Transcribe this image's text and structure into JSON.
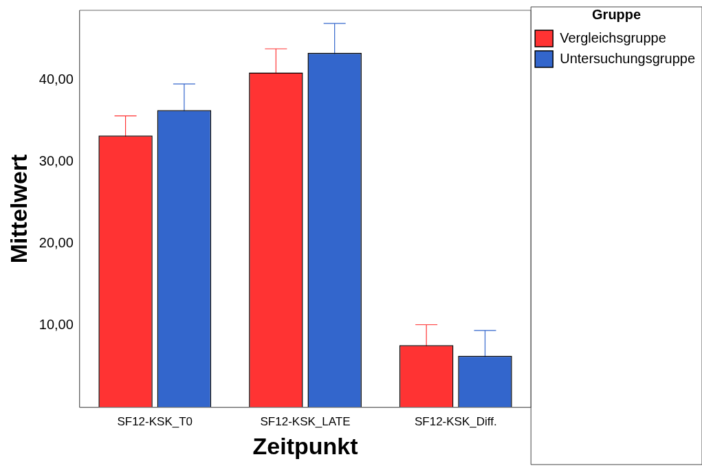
{
  "chart_data": {
    "type": "bar",
    "xlabel": "Zeitpunkt",
    "ylabel": "Mittelwert",
    "legend_title": "Gruppe",
    "legend": "top right",
    "categories": [
      "SF12-KSK_T0",
      "SF12-KSK_LATE",
      "SF12-KSK_Diff."
    ],
    "series": [
      {
        "name": "Vergleichsgruppe",
        "color": "#ff3333",
        "values": [
          33.2,
          40.9,
          7.6
        ],
        "errors": [
          2.4,
          2.9,
          2.5
        ]
      },
      {
        "name": "Untersuchungsgruppe",
        "color": "#3366cc",
        "values": [
          36.3,
          43.3,
          6.3
        ],
        "errors": [
          3.2,
          3.6,
          3.1
        ]
      }
    ],
    "ylim": [
      0,
      48.5
    ],
    "yticks": [
      {
        "value": 10,
        "label": "10,00"
      },
      {
        "value": 20,
        "label": "20,00"
      },
      {
        "value": 30,
        "label": "30,00"
      },
      {
        "value": 40,
        "label": "40,00"
      }
    ],
    "grid": false
  }
}
